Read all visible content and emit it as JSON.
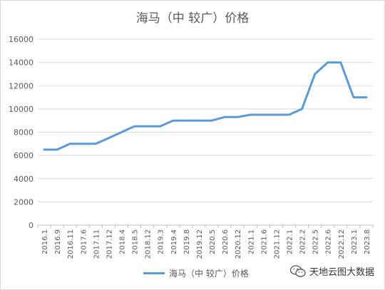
{
  "chart_data": {
    "type": "line",
    "title": "海马（中 较广）价格",
    "xlabel": "",
    "ylabel": "",
    "ylim": [
      0,
      16000
    ],
    "yticks": [
      0,
      2000,
      4000,
      6000,
      8000,
      10000,
      12000,
      14000,
      16000
    ],
    "grid": true,
    "legend_position": "bottom",
    "categories": [
      "2016.1",
      "2016.9",
      "2016.11",
      "2017.6",
      "2017.11",
      "2017.12",
      "2018.4",
      "2018.5",
      "2018.12",
      "2019.3",
      "2019.4",
      "2019.8",
      "2019.12",
      "2020.5",
      "2020.6",
      "2020.12",
      "2021.1",
      "2021.6",
      "2021.12",
      "2022.1",
      "2022.2",
      "2022.5",
      "2022.6",
      "2022.12",
      "2023.1",
      "2023.8"
    ],
    "series": [
      {
        "name": "海马（中 较广）价格",
        "color": "#5b9bd5",
        "values": [
          6500,
          6500,
          7000,
          7000,
          7000,
          7500,
          8000,
          8500,
          8500,
          8500,
          9000,
          9000,
          9000,
          9000,
          9300,
          9300,
          9500,
          9500,
          9500,
          9500,
          10000,
          13000,
          14000,
          14000,
          11000,
          11000
        ]
      }
    ]
  },
  "watermark": {
    "text": "天地云图大数据",
    "icon": "wechat-icon"
  }
}
